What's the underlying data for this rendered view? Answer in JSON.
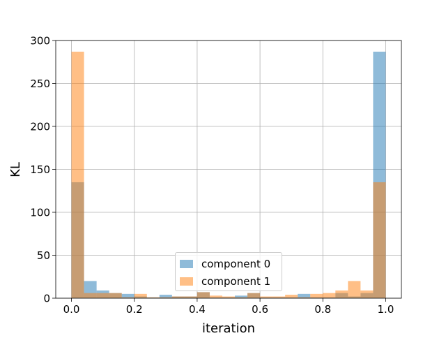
{
  "chart_data": {
    "type": "bar",
    "xlabel": "iteration",
    "ylabel": "KL",
    "xlim": [
      -0.05,
      1.05
    ],
    "ylim": [
      0,
      300
    ],
    "xticks": [
      "0.0",
      "0.2",
      "0.4",
      "0.6",
      "0.8",
      "1.0"
    ],
    "yticks": [
      "0",
      "50",
      "100",
      "150",
      "200",
      "250",
      "300"
    ],
    "grid": true,
    "legend_position": "bottom-center",
    "bin_edges": [
      0.0,
      0.04,
      0.08,
      0.12,
      0.16,
      0.2,
      0.24,
      0.28,
      0.32,
      0.36,
      0.4,
      0.44,
      0.48,
      0.52,
      0.56,
      0.6,
      0.64,
      0.68,
      0.72,
      0.76,
      0.8,
      0.84,
      0.88,
      0.92,
      0.96,
      1.0
    ],
    "series": [
      {
        "name": "component 0",
        "color": "#1f77b4",
        "values": [
          135,
          20,
          9,
          6,
          5,
          2,
          1,
          4,
          2,
          2,
          7,
          1,
          1,
          3,
          6,
          1,
          1,
          1,
          5,
          1,
          1,
          6,
          2,
          6,
          287
        ]
      },
      {
        "name": "component 1",
        "color": "#ff7f0e",
        "values": [
          287,
          6,
          6,
          6,
          1,
          5,
          1,
          1,
          2,
          2,
          7,
          3,
          2,
          1,
          6,
          2,
          2,
          4,
          1,
          5,
          6,
          9,
          20,
          9,
          135
        ]
      }
    ]
  }
}
